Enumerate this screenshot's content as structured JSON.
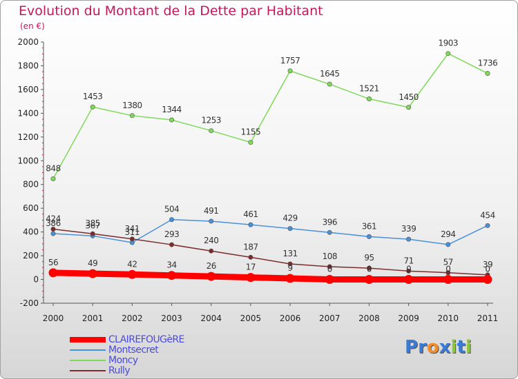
{
  "header": {
    "title": "Evolution du Montant de la Dette par Habitant",
    "subtitle": "(en €)"
  },
  "logo": {
    "text": "Proxiti",
    "colors": [
      "#3a7bd5",
      "#3a7bd5",
      "#f28c28",
      "#3a7bd5",
      "#8cc63f",
      "#3a7bd5",
      "#8cc63f"
    ]
  },
  "chart_data": {
    "type": "line",
    "x": [
      "2000",
      "2001",
      "2002",
      "2003",
      "2004",
      "2005",
      "2006",
      "2007",
      "2008",
      "2009",
      "2010",
      "2011"
    ],
    "ylim": [
      -200,
      2000
    ],
    "yticks": [
      "-200",
      "0",
      "200",
      "400",
      "600",
      "800",
      "1000",
      "1200",
      "1400",
      "1600",
      "1800",
      "2000"
    ],
    "grid": false,
    "legend_position": "bottom-left",
    "series": [
      {
        "name": "CLAIREFOUGèRE",
        "color": "#ff0000",
        "values": [
          56,
          49,
          42,
          34,
          26,
          17,
          9,
          0,
          0,
          0,
          0,
          0
        ],
        "labels": [
          "56",
          "49",
          "42",
          "34",
          "26",
          "17",
          "9",
          "0",
          "0",
          "0",
          "0",
          "0"
        ]
      },
      {
        "name": "Montsecret",
        "color": "#4a90d9",
        "values": [
          386,
          367,
          311,
          504,
          491,
          461,
          429,
          396,
          361,
          339,
          294,
          454
        ],
        "labels": [
          "386",
          "367",
          "311",
          "504",
          "491",
          "461",
          "429",
          "396",
          "361",
          "339",
          "294",
          "454"
        ]
      },
      {
        "name": "Moncy",
        "color": "#7ed957",
        "values": [
          848,
          1453,
          1380,
          1344,
          1253,
          1155,
          1757,
          1645,
          1521,
          1450,
          1903,
          1736
        ],
        "labels": [
          "848",
          "1453",
          "1380",
          "1344",
          "1253",
          "1155",
          "1757",
          "1645",
          "1521",
          "1450",
          "1903",
          "1736"
        ]
      },
      {
        "name": "Rully",
        "color": "#7b2b2b",
        "values": [
          424,
          385,
          341,
          293,
          240,
          187,
          131,
          108,
          95,
          71,
          57,
          39
        ],
        "labels": [
          "424",
          "385",
          "341",
          "293",
          "240",
          "187",
          "131",
          "108",
          "95",
          "71",
          "57",
          "39"
        ]
      }
    ]
  }
}
